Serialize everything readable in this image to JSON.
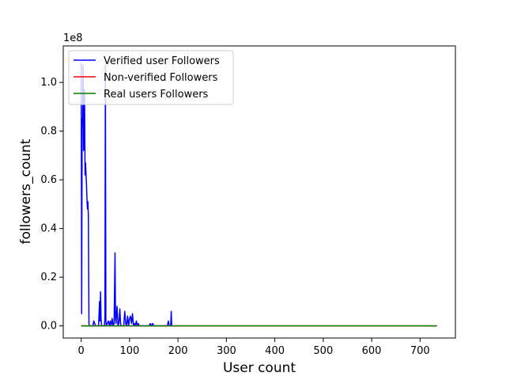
{
  "chart_data": {
    "type": "line",
    "title": "",
    "xlabel": "User count",
    "ylabel": "followers_count",
    "y_offset_label": "1e8",
    "xlim": [
      -37,
      773
    ],
    "ylim": [
      -0.05,
      1.15
    ],
    "x_ticks": [
      0,
      100,
      200,
      300,
      400,
      500,
      600,
      700
    ],
    "y_ticks": [
      0.0,
      0.2,
      0.4,
      0.6,
      0.8,
      1.0
    ],
    "y_tick_labels": [
      "0.0",
      "0.2",
      "0.4",
      "0.6",
      "0.8",
      "1.0"
    ],
    "grid": false,
    "legend_position": "top-left",
    "series": [
      {
        "name": "Verified user Followers",
        "color": "#0000ff",
        "x": [
          0,
          1,
          2,
          3,
          4,
          5,
          6,
          7,
          8,
          9,
          10,
          11,
          12,
          13,
          14,
          15,
          16,
          17,
          18,
          19,
          20,
          22,
          24,
          26,
          28,
          30,
          32,
          34,
          36,
          38,
          39,
          40,
          41,
          42,
          43,
          44,
          46,
          48,
          49,
          50,
          51,
          52,
          54,
          56,
          58,
          60,
          62,
          64,
          66,
          68,
          70,
          71,
          72,
          74,
          76,
          78,
          80,
          81,
          82,
          84,
          86,
          88,
          90,
          92,
          94,
          96,
          98,
          100,
          102,
          104,
          106,
          108,
          110,
          112,
          114,
          116,
          118,
          120,
          125,
          130,
          135,
          140,
          143,
          145,
          148,
          150,
          155,
          160,
          165,
          170,
          175,
          178,
          180,
          182,
          184,
          185,
          186,
          187,
          188
        ],
        "values": [
          1.08,
          0.05,
          0.85,
          0.82,
          1.07,
          0.72,
          0.78,
          0.97,
          0.62,
          0.67,
          0.62,
          0.58,
          0.52,
          0.48,
          0.51,
          0.45,
          0.01,
          0.0,
          0.0,
          0.0,
          0.0,
          0.0,
          0.0,
          0.02,
          0.01,
          0.0,
          0.0,
          0.0,
          0.0,
          0.1,
          0.02,
          0.14,
          0.03,
          0.0,
          0.0,
          0.0,
          0.0,
          0.0,
          0.03,
          1.07,
          0.02,
          0.0,
          0.01,
          0.02,
          0.0,
          0.02,
          0.0,
          0.03,
          0.0,
          0.01,
          0.3,
          0.03,
          0.01,
          0.08,
          0.0,
          0.01,
          0.07,
          0.02,
          0.0,
          0.0,
          0.0,
          0.0,
          0.06,
          0.01,
          0.0,
          0.04,
          0.0,
          0.03,
          0.04,
          0.01,
          0.05,
          0.0,
          0.01,
          0.0,
          0.02,
          0.0,
          0.01,
          0.0,
          0.0,
          0.0,
          0.0,
          0.0,
          0.01,
          0.0,
          0.01,
          0.0,
          0.0,
          0.0,
          0.0,
          0.0,
          0.0,
          0.0,
          0.02,
          0.0,
          0.0,
          0.0,
          0.06,
          0.0,
          0.0
        ]
      },
      {
        "name": "Non-verified Followers",
        "color": "#ff0000",
        "x": [
          0,
          100,
          200,
          300,
          400,
          500,
          600,
          700,
          735
        ],
        "values": [
          0.0,
          0.0,
          0.0,
          0.0,
          0.0,
          0.0,
          0.0,
          0.0,
          0.0
        ]
      },
      {
        "name": "Real users Followers",
        "color": "#008000",
        "x": [
          0,
          100,
          200,
          300,
          400,
          500,
          600,
          700,
          735
        ],
        "values": [
          0.0,
          0.0,
          0.0,
          0.0,
          0.0,
          0.0,
          0.0,
          0.0,
          0.0
        ]
      }
    ]
  }
}
